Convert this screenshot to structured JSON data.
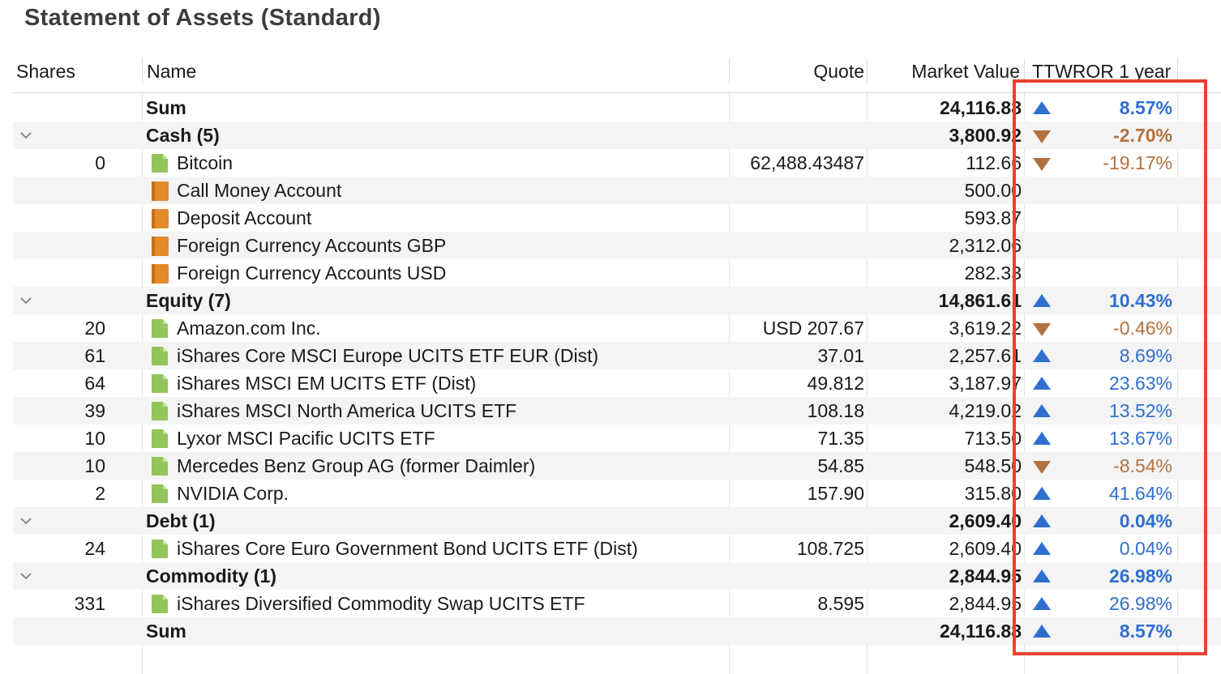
{
  "title": "Statement of Assets (Standard)",
  "columns": {
    "shares": "Shares",
    "name": "Name",
    "quote": "Quote",
    "market_value": "Market Value",
    "ttwror": "TTWROR 1 year"
  },
  "colors": {
    "positive": "#2f6fd0",
    "negative": "#b3713e",
    "highlight": "#e8412e",
    "security_icon": "#93c55a",
    "account_icon": "#e38a2a"
  },
  "rows": [
    {
      "kind": "sum",
      "name": "Sum",
      "market_value": "24,116.88",
      "ttwror": "8.57%",
      "trend": "up"
    },
    {
      "kind": "group",
      "name": "Cash (5)",
      "market_value": "3,800.92",
      "ttwror": "-2.70%",
      "trend": "down"
    },
    {
      "kind": "security",
      "shares": "0",
      "name": "Bitcoin",
      "quote": "62,488.43487",
      "market_value": "112.66",
      "ttwror": "-19.17%",
      "trend": "down"
    },
    {
      "kind": "account",
      "name": "Call Money Account",
      "market_value": "500.00"
    },
    {
      "kind": "account",
      "name": "Deposit Account",
      "market_value": "593.87"
    },
    {
      "kind": "account",
      "name": "Foreign Currency Accounts GBP",
      "market_value": "2,312.06"
    },
    {
      "kind": "account",
      "name": "Foreign Currency Accounts USD",
      "market_value": "282.33"
    },
    {
      "kind": "group",
      "name": "Equity (7)",
      "market_value": "14,861.61",
      "ttwror": "10.43%",
      "trend": "up"
    },
    {
      "kind": "security",
      "shares": "20",
      "name": "Amazon.com Inc.",
      "quote": "USD 207.67",
      "market_value": "3,619.22",
      "ttwror": "-0.46%",
      "trend": "down"
    },
    {
      "kind": "security",
      "shares": "61",
      "name": "iShares Core MSCI Europe UCITS ETF EUR (Dist)",
      "quote": "37.01",
      "market_value": "2,257.61",
      "ttwror": "8.69%",
      "trend": "up"
    },
    {
      "kind": "security",
      "shares": "64",
      "name": "iShares MSCI EM UCITS ETF (Dist)",
      "quote": "49.812",
      "market_value": "3,187.97",
      "ttwror": "23.63%",
      "trend": "up"
    },
    {
      "kind": "security",
      "shares": "39",
      "name": "iShares MSCI North America UCITS ETF",
      "quote": "108.18",
      "market_value": "4,219.02",
      "ttwror": "13.52%",
      "trend": "up"
    },
    {
      "kind": "security",
      "shares": "10",
      "name": "Lyxor MSCI Pacific UCITS ETF",
      "quote": "71.35",
      "market_value": "713.50",
      "ttwror": "13.67%",
      "trend": "up"
    },
    {
      "kind": "security",
      "shares": "10",
      "name": "Mercedes Benz Group AG (former Daimler)",
      "quote": "54.85",
      "market_value": "548.50",
      "ttwror": "-8.54%",
      "trend": "down"
    },
    {
      "kind": "security",
      "shares": "2",
      "name": "NVIDIA Corp.",
      "quote": "157.90",
      "market_value": "315.80",
      "ttwror": "41.64%",
      "trend": "up"
    },
    {
      "kind": "group",
      "name": "Debt (1)",
      "market_value": "2,609.40",
      "ttwror": "0.04%",
      "trend": "up"
    },
    {
      "kind": "security",
      "shares": "24",
      "name": "iShares Core Euro Government Bond UCITS ETF (Dist)",
      "quote": "108.725",
      "market_value": "2,609.40",
      "ttwror": "0.04%",
      "trend": "up"
    },
    {
      "kind": "group",
      "name": "Commodity (1)",
      "market_value": "2,844.95",
      "ttwror": "26.98%",
      "trend": "up"
    },
    {
      "kind": "security",
      "shares": "331",
      "name": "iShares Diversified Commodity Swap UCITS ETF",
      "quote": "8.595",
      "market_value": "2,844.95",
      "ttwror": "26.98%",
      "trend": "up"
    },
    {
      "kind": "sum",
      "name": "Sum",
      "market_value": "24,116.88",
      "ttwror": "8.57%",
      "trend": "up"
    }
  ]
}
